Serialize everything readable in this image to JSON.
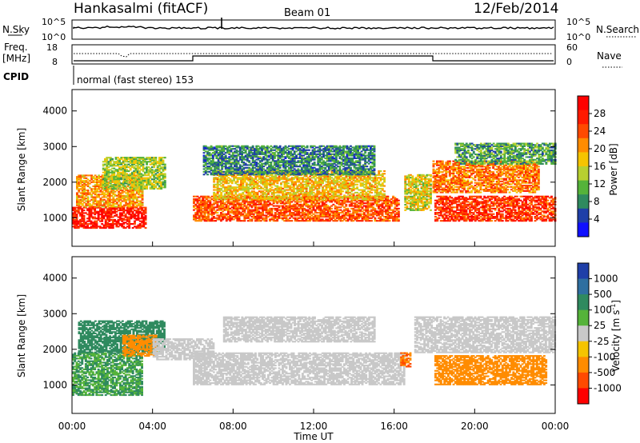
{
  "header": {
    "station": "Hankasalmi (fitACF)",
    "beam": "Beam 01",
    "date": "12/Feb/2014"
  },
  "noise_panel": {
    "left_label": "N.Sky",
    "right_label": "N.Search",
    "left_ticks": [
      "10^5",
      "10^0"
    ],
    "right_ticks": [
      "10^5",
      "10^0"
    ]
  },
  "freq_panel": {
    "left_label_line1": "Freq.",
    "left_label_line2": "[MHz]",
    "right_label": "Nave",
    "left_ticks": [
      "18",
      "8"
    ],
    "right_ticks": [
      "60",
      "0"
    ]
  },
  "cpid": {
    "label": "CPID",
    "text": "normal (fast stereo) 153"
  },
  "colors": {
    "power_scale": [
      "#1010ff",
      "#1f3fa8",
      "#2f8a5f",
      "#55b33a",
      "#b7d030",
      "#f5c400",
      "#ff8c00",
      "#ff4a00",
      "#ff1a00",
      "#ff0000"
    ],
    "velocity_scale": [
      "#1f3fa8",
      "#2f6fa0",
      "#2f8a5f",
      "#55b33a",
      "#c8c8c8",
      "#f5c400",
      "#ff8c00",
      "#ff4a00",
      "#ff0000"
    ],
    "ground_scatter": "#c8c8c8"
  },
  "chart_data": [
    {
      "type": "heatmap",
      "title": "",
      "xlabel": "Time UT",
      "ylabel": "Slant Range [km]",
      "x_ticks": [
        "00:00",
        "04:00",
        "08:00",
        "12:00",
        "16:00",
        "20:00",
        "00:00"
      ],
      "y_ticks": [
        1000,
        2000,
        3000,
        4000
      ],
      "ylim": [
        200,
        4600
      ],
      "xlim_hours": [
        0,
        24
      ],
      "colorbar": {
        "label": "Power [dB]",
        "ticks": [
          4,
          8,
          12,
          16,
          20,
          24,
          28
        ],
        "range": [
          0,
          32
        ]
      },
      "scatter_regions": [
        {
          "t_start": 0.0,
          "t_end": 3.6,
          "range_low": 700,
          "range_high": 1300,
          "value": 28
        },
        {
          "t_start": 0.2,
          "t_end": 3.5,
          "range_low": 1300,
          "range_high": 2200,
          "value": 20
        },
        {
          "t_start": 1.5,
          "t_end": 4.6,
          "range_low": 1800,
          "range_high": 2700,
          "value": 14
        },
        {
          "t_start": 6.0,
          "t_end": 16.2,
          "range_low": 900,
          "range_high": 1600,
          "value": 24
        },
        {
          "t_start": 7.0,
          "t_end": 15.5,
          "range_low": 1500,
          "range_high": 2300,
          "value": 18
        },
        {
          "t_start": 6.5,
          "t_end": 15.0,
          "range_low": 2200,
          "range_high": 3000,
          "value": 8
        },
        {
          "t_start": 16.5,
          "t_end": 17.8,
          "range_low": 1200,
          "range_high": 2200,
          "value": 16
        },
        {
          "t_start": 17.9,
          "t_end": 23.2,
          "range_low": 1700,
          "range_high": 2600,
          "value": 22
        },
        {
          "t_start": 18.0,
          "t_end": 24.0,
          "range_low": 900,
          "range_high": 1600,
          "value": 26
        },
        {
          "t_start": 19.0,
          "t_end": 24.0,
          "range_low": 2500,
          "range_high": 3100,
          "value": 10
        }
      ]
    },
    {
      "type": "heatmap",
      "title": "",
      "xlabel": "Time UT",
      "ylabel": "Slant Range [km]",
      "x_ticks": [
        "00:00",
        "04:00",
        "08:00",
        "12:00",
        "16:00",
        "20:00",
        "00:00"
      ],
      "y_ticks": [
        1000,
        2000,
        3000,
        4000
      ],
      "ylim": [
        200,
        4600
      ],
      "xlim_hours": [
        0,
        24
      ],
      "colorbar": {
        "label": "Velocity [m s^-1]",
        "ticks": [
          1000,
          500,
          100,
          25,
          -25,
          -100,
          -500,
          -1000
        ]
      },
      "scatter_regions": [
        {
          "t_start": 0.0,
          "t_end": 3.5,
          "range_low": 700,
          "range_high": 1900,
          "value": 100
        },
        {
          "t_start": 0.3,
          "t_end": 4.6,
          "range_low": 1900,
          "range_high": 2800,
          "value": 300
        },
        {
          "t_start": 2.5,
          "t_end": 4.2,
          "range_low": 1800,
          "range_high": 2400,
          "value": -200
        },
        {
          "t_start": 4.0,
          "t_end": 7.0,
          "range_low": 1700,
          "range_high": 2300,
          "value": 0
        },
        {
          "t_start": 6.0,
          "t_end": 16.5,
          "range_low": 1000,
          "range_high": 1900,
          "value": 0
        },
        {
          "t_start": 7.5,
          "t_end": 15.0,
          "range_low": 2200,
          "range_high": 2900,
          "value": 0
        },
        {
          "t_start": 16.3,
          "t_end": 16.8,
          "range_low": 1500,
          "range_high": 1900,
          "value": -500
        },
        {
          "t_start": 18.0,
          "t_end": 23.5,
          "range_low": 1000,
          "range_high": 1800,
          "value": -300
        },
        {
          "t_start": 17.0,
          "t_end": 24.0,
          "range_low": 1900,
          "range_high": 2900,
          "value": 0
        }
      ]
    }
  ]
}
